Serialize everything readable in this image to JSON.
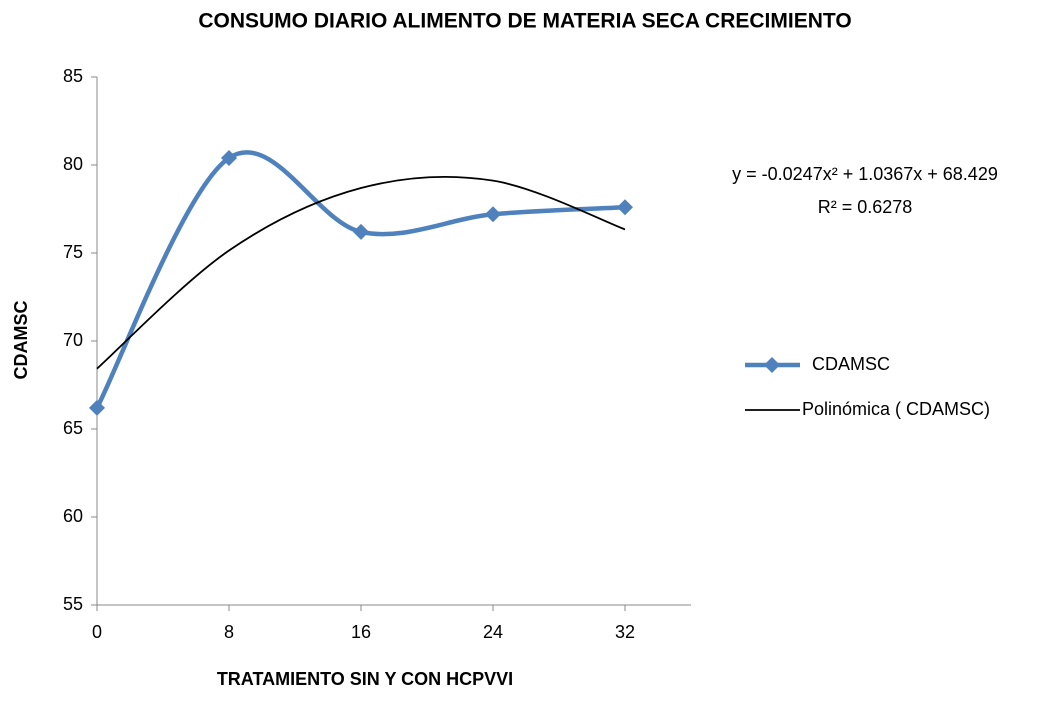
{
  "chart_data": {
    "type": "line",
    "title": "CONSUMO DIARIO ALIMENTO DE MATERIA SECA CRECIMIENTO",
    "x_label": "TRATAMIENTO SIN Y CON HCPVVI",
    "y_label": "CDAMSC",
    "x": [
      0,
      8,
      16,
      24,
      32
    ],
    "series": [
      {
        "name": "CDAMSC",
        "color": "#4f81bd",
        "values": [
          66.2,
          80.4,
          76.2,
          77.2,
          77.6
        ]
      },
      {
        "name": "Polinómica ( CDAMSC)",
        "color": "#000000",
        "values": [
          68.429,
          75.14,
          78.69,
          79.11,
          76.34
        ]
      }
    ],
    "annotations": [
      "y = -0.0247x² + 1.0367x + 68.429",
      "R² = 0.6278"
    ],
    "xlim": [
      0,
      36
    ],
    "xticks": [
      0,
      8,
      16,
      24,
      32
    ],
    "ylim": [
      55,
      85
    ],
    "yticks": [
      55,
      60,
      65,
      70,
      75,
      80,
      85
    ],
    "grid": false,
    "legend": "right"
  }
}
